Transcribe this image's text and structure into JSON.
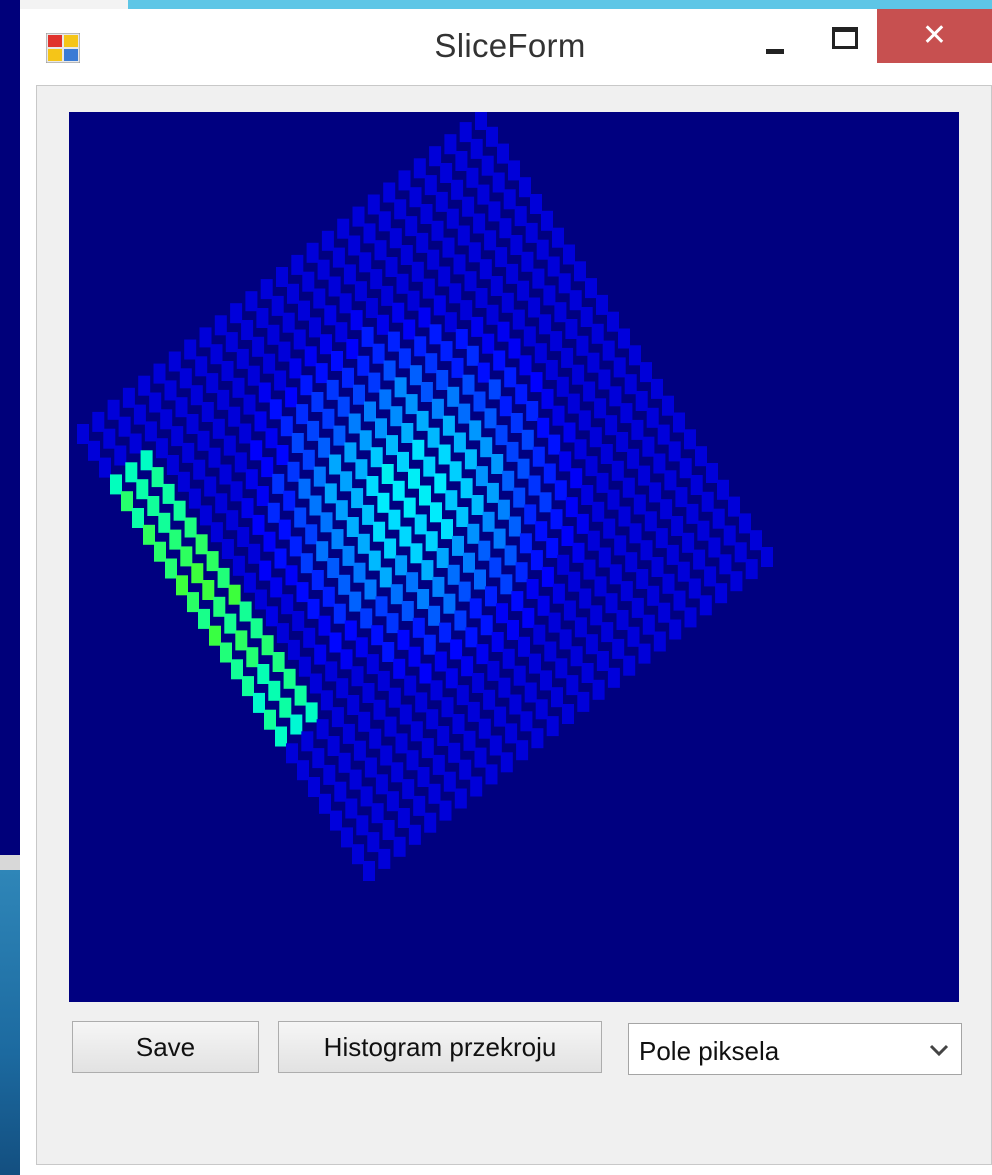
{
  "window": {
    "title": "SliceForm",
    "close_glyph": "✕",
    "icons": {
      "app": "app-window-icon",
      "minimize": "minimize-icon",
      "maximize": "maximize-icon",
      "close": "close-icon"
    }
  },
  "toolbar": {
    "save_label": "Save",
    "histogram_label": "Histogram przekroju",
    "view_select": {
      "selected": "Pole piksela"
    }
  },
  "colors": {
    "titlebar": "#ffffff",
    "close_button": "#c75050",
    "client_background": "#f0f0f0",
    "canvas_background": "#000080"
  }
}
